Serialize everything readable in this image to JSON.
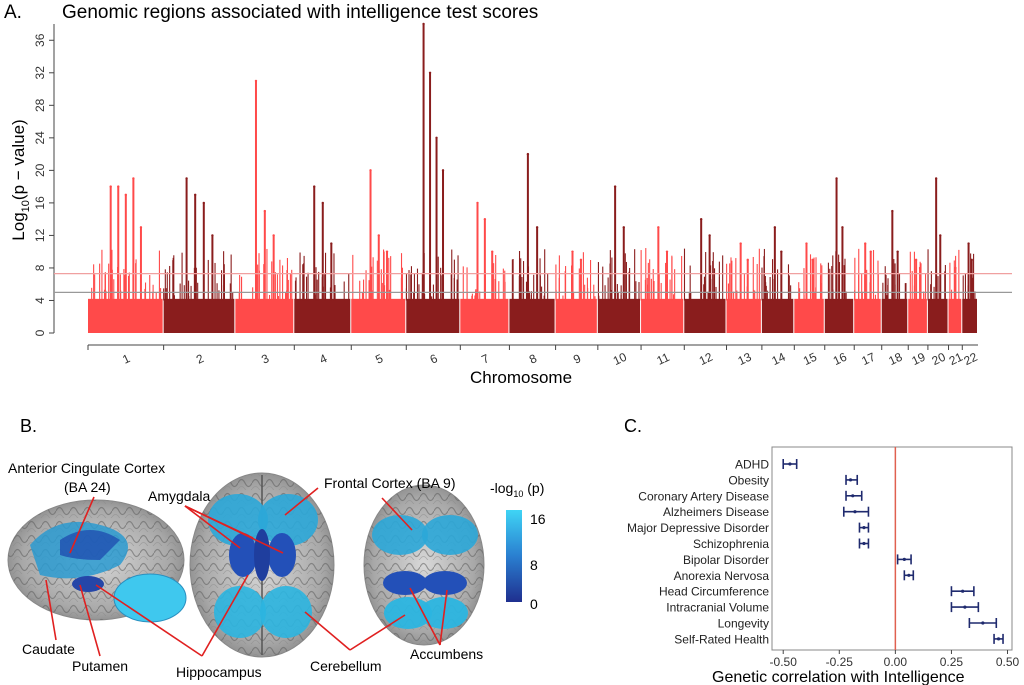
{
  "panel_a": {
    "letter": "A.",
    "title": "Genomic regions associated with intelligence test scores",
    "ylabel_main": "Log",
    "ylabel_sub": "10",
    "ylabel_tail": "(p − value)",
    "xlabel": "Chromosome",
    "colors": {
      "light": "#ff4a4a",
      "dark": "#8a1d1d",
      "hline_sig": "#f0a0a0",
      "hline_sug": "#999999"
    }
  },
  "panel_b": {
    "letter": "B.",
    "labels": {
      "acc_line1": "Anterior Cingulate Cortex",
      "acc_line2": "(BA 24)",
      "amygdala": "Amygdala",
      "frontal": "Frontal Cortex (BA 9)",
      "caudate": "Caudate",
      "putamen": "Putamen",
      "hippocampus": "Hippocampus",
      "cerebellum": "Cerebellum",
      "accumbens": "Accumbens"
    },
    "colorbar": {
      "title_main": "-log",
      "title_sub": "10",
      "title_tail": " (p)",
      "ticks": [
        "16",
        "8",
        "0"
      ],
      "colors": {
        "high": "#3fd4f5",
        "low": "#1f2f8f"
      }
    },
    "line_color": "#e02020"
  },
  "panel_c": {
    "letter": "C.",
    "xlabel": "Genetic correlation with Intelligence",
    "zero_line_color": "#e06050",
    "marker_color": "#1f2a6e"
  },
  "chart_data": [
    {
      "type": "scatter",
      "title": "Genomic regions associated with intelligence test scores",
      "xlabel": "Chromosome",
      "ylabel": "Log10(p − value)",
      "ylim": [
        0,
        38
      ],
      "yticks": [
        0,
        4,
        8,
        12,
        16,
        20,
        24,
        28,
        32,
        36
      ],
      "thresholds": [
        7.3,
        5.0
      ],
      "chromosomes": [
        {
          "name": "1",
          "peaks": [
            18,
            18,
            17,
            19,
            13
          ]
        },
        {
          "name": "2",
          "peaks": [
            19,
            17,
            16,
            12
          ]
        },
        {
          "name": "3",
          "peaks": [
            31,
            15,
            12
          ]
        },
        {
          "name": "4",
          "peaks": [
            18,
            16,
            11
          ]
        },
        {
          "name": "5",
          "peaks": [
            20,
            12,
            10
          ]
        },
        {
          "name": "6",
          "peaks": [
            38,
            32,
            24,
            20
          ]
        },
        {
          "name": "7",
          "peaks": [
            16,
            14,
            10
          ]
        },
        {
          "name": "8",
          "peaks": [
            22,
            13
          ]
        },
        {
          "name": "9",
          "peaks": [
            10,
            9
          ]
        },
        {
          "name": "10",
          "peaks": [
            18,
            13
          ]
        },
        {
          "name": "11",
          "peaks": [
            13,
            10
          ]
        },
        {
          "name": "12",
          "peaks": [
            14,
            12
          ]
        },
        {
          "name": "13",
          "peaks": [
            11,
            9
          ]
        },
        {
          "name": "14",
          "peaks": [
            13,
            10
          ]
        },
        {
          "name": "15",
          "peaks": [
            11,
            9
          ]
        },
        {
          "name": "16",
          "peaks": [
            19,
            13
          ]
        },
        {
          "name": "17",
          "peaks": [
            11,
            10
          ]
        },
        {
          "name": "18",
          "peaks": [
            15,
            10
          ]
        },
        {
          "name": "19",
          "peaks": [
            9,
            8
          ]
        },
        {
          "name": "20",
          "peaks": [
            19,
            12
          ]
        },
        {
          "name": "21",
          "peaks": [
            8
          ]
        },
        {
          "name": "22",
          "peaks": [
            11,
            9
          ]
        }
      ]
    },
    {
      "type": "scatter",
      "title": "",
      "xlabel": "Genetic correlation with Intelligence",
      "ylabel": "",
      "xlim": [
        -0.55,
        0.52
      ],
      "xticks": [
        "-0.50",
        "-0.25",
        "0.00",
        "0.25",
        "0.50"
      ],
      "xtick_values": [
        -0.5,
        -0.25,
        0.0,
        0.25,
        0.5
      ],
      "traits": [
        {
          "name": "ADHD",
          "value": -0.47,
          "lo": -0.5,
          "hi": -0.44
        },
        {
          "name": "Obesity",
          "value": -0.2,
          "lo": -0.22,
          "hi": -0.17
        },
        {
          "name": "Coronary Artery Disease",
          "value": -0.19,
          "lo": -0.22,
          "hi": -0.15
        },
        {
          "name": "Alzheimers Disease",
          "value": -0.18,
          "lo": -0.23,
          "hi": -0.12
        },
        {
          "name": "Major Depressive Disorder",
          "value": -0.14,
          "lo": -0.16,
          "hi": -0.12
        },
        {
          "name": "Schizophrenia",
          "value": -0.14,
          "lo": -0.16,
          "hi": -0.12
        },
        {
          "name": "Bipolar Disorder",
          "value": 0.04,
          "lo": 0.01,
          "hi": 0.07
        },
        {
          "name": "Anorexia Nervosa",
          "value": 0.06,
          "lo": 0.04,
          "hi": 0.08
        },
        {
          "name": "Head Circumference",
          "value": 0.3,
          "lo": 0.25,
          "hi": 0.35
        },
        {
          "name": "Intracranial Volume",
          "value": 0.31,
          "lo": 0.25,
          "hi": 0.37
        },
        {
          "name": "Longevity",
          "value": 0.39,
          "lo": 0.33,
          "hi": 0.45
        },
        {
          "name": "Self-Rated Health",
          "value": 0.46,
          "lo": 0.44,
          "hi": 0.48
        }
      ]
    }
  ]
}
